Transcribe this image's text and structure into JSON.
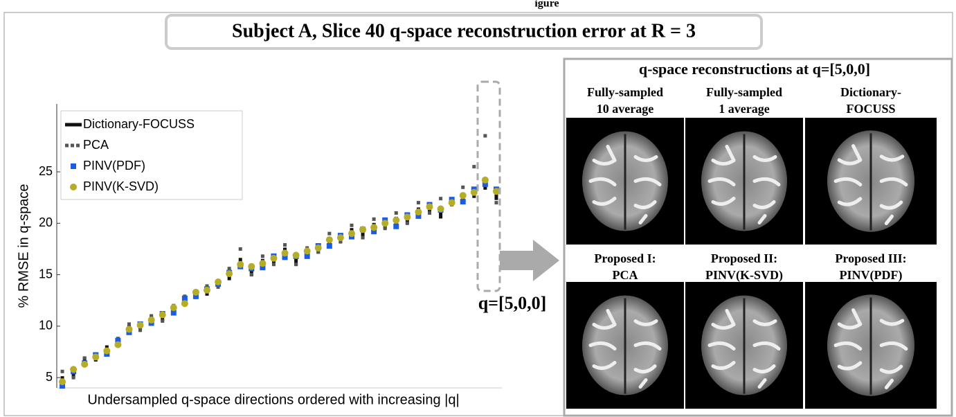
{
  "caption_fragment": "igure",
  "title": "Subject A, Slice 40 q-space reconstruction error at R = 3",
  "annotation": "q=[5,0,0]",
  "chart_data": {
    "type": "scatter",
    "y_label": "% RMSE in q-space",
    "x_label": "Undersampled q-space directions ordered with increasing |q|",
    "x": [
      1,
      2,
      3,
      4,
      5,
      6,
      7,
      8,
      9,
      10,
      11,
      12,
      13,
      14,
      15,
      16,
      17,
      18,
      19,
      20,
      21,
      22,
      23,
      24,
      25,
      26,
      27,
      28,
      29,
      30,
      31,
      32,
      33,
      34,
      35,
      36,
      37,
      38,
      39,
      40
    ],
    "xlim": [
      0.5,
      40.5
    ],
    "ylim": [
      4,
      31.6
    ],
    "yticks": [
      5,
      10,
      15,
      20,
      25
    ],
    "legend": "upper left",
    "series": [
      {
        "name": "Dictionary-FOCUSS",
        "color": "#111111",
        "style": "solid",
        "values": [
          4.8,
          5.3,
          6.7,
          6.9,
          7.8,
          8.4,
          9.8,
          9.9,
          10.7,
          10.8,
          11.6,
          12.3,
          13.2,
          13.3,
          14.2,
          14.8,
          16.3,
          15.2,
          16.2,
          16.4,
          17.3,
          16.2,
          17.1,
          17.4,
          18.3,
          18.4,
          19.2,
          18.8,
          19.7,
          19.8,
          20.3,
          20.3,
          21.2,
          21.3,
          20.8,
          22.2,
          22.4,
          22.8,
          23.6,
          22.6
        ]
      },
      {
        "name": "PCA",
        "color": "#555555",
        "style": "dotted",
        "values": [
          5.6,
          5.0,
          6.9,
          7.3,
          7.6,
          8.8,
          10.2,
          9.6,
          11.0,
          10.5,
          12.0,
          12.9,
          12.8,
          13.9,
          13.8,
          15.6,
          17.5,
          15.0,
          16.8,
          16.0,
          17.9,
          16.0,
          17.6,
          17.2,
          19.0,
          18.2,
          19.8,
          18.6,
          20.4,
          19.5,
          21.0,
          20.0,
          22.0,
          21.0,
          22.4,
          21.8,
          23.5,
          25.5,
          28.5,
          22.0
        ]
      },
      {
        "name": "PINV(PDF)",
        "color": "#1a5ce6",
        "style": "square",
        "values": [
          4.2,
          5.6,
          6.4,
          7.2,
          7.3,
          8.6,
          9.4,
          10.2,
          10.3,
          11.2,
          11.3,
          12.7,
          12.9,
          13.6,
          14.1,
          15.2,
          15.8,
          15.6,
          15.7,
          16.8,
          16.7,
          16.8,
          16.8,
          17.8,
          17.8,
          18.8,
          18.7,
          19.4,
          19.2,
          20.3,
          19.7,
          20.8,
          20.7,
          21.8,
          21.3,
          22.3,
          22.1,
          23.3,
          23.8,
          23.3
        ]
      },
      {
        "name": "PINV(K-SVD)",
        "color": "#b5ad28",
        "style": "circle",
        "values": [
          4.6,
          5.8,
          6.3,
          7.0,
          7.6,
          8.2,
          9.7,
          10.1,
          10.6,
          11.1,
          11.8,
          12.2,
          13.3,
          13.5,
          14.3,
          15.1,
          16.0,
          15.8,
          16.1,
          16.6,
          17.1,
          16.9,
          17.3,
          17.6,
          18.4,
          18.6,
          19.0,
          19.4,
          19.6,
          20.0,
          20.3,
          20.6,
          21.1,
          21.6,
          21.4,
          22.0,
          22.7,
          23.0,
          24.2,
          23.1
        ]
      }
    ]
  },
  "panel": {
    "title": "q-space reconstructions at q=[5,0,0]",
    "images": [
      {
        "label": [
          "Fully-sampled",
          "10 average"
        ]
      },
      {
        "label": [
          "Fully-sampled",
          "1 average"
        ]
      },
      {
        "label": [
          "Dictionary-",
          "FOCUSS"
        ]
      },
      {
        "label": [
          "Proposed I:",
          "PCA"
        ]
      },
      {
        "label": [
          "Proposed II:",
          "PINV(K-SVD)"
        ]
      },
      {
        "label": [
          "Proposed III:",
          "PINV(PDF)"
        ]
      }
    ]
  }
}
